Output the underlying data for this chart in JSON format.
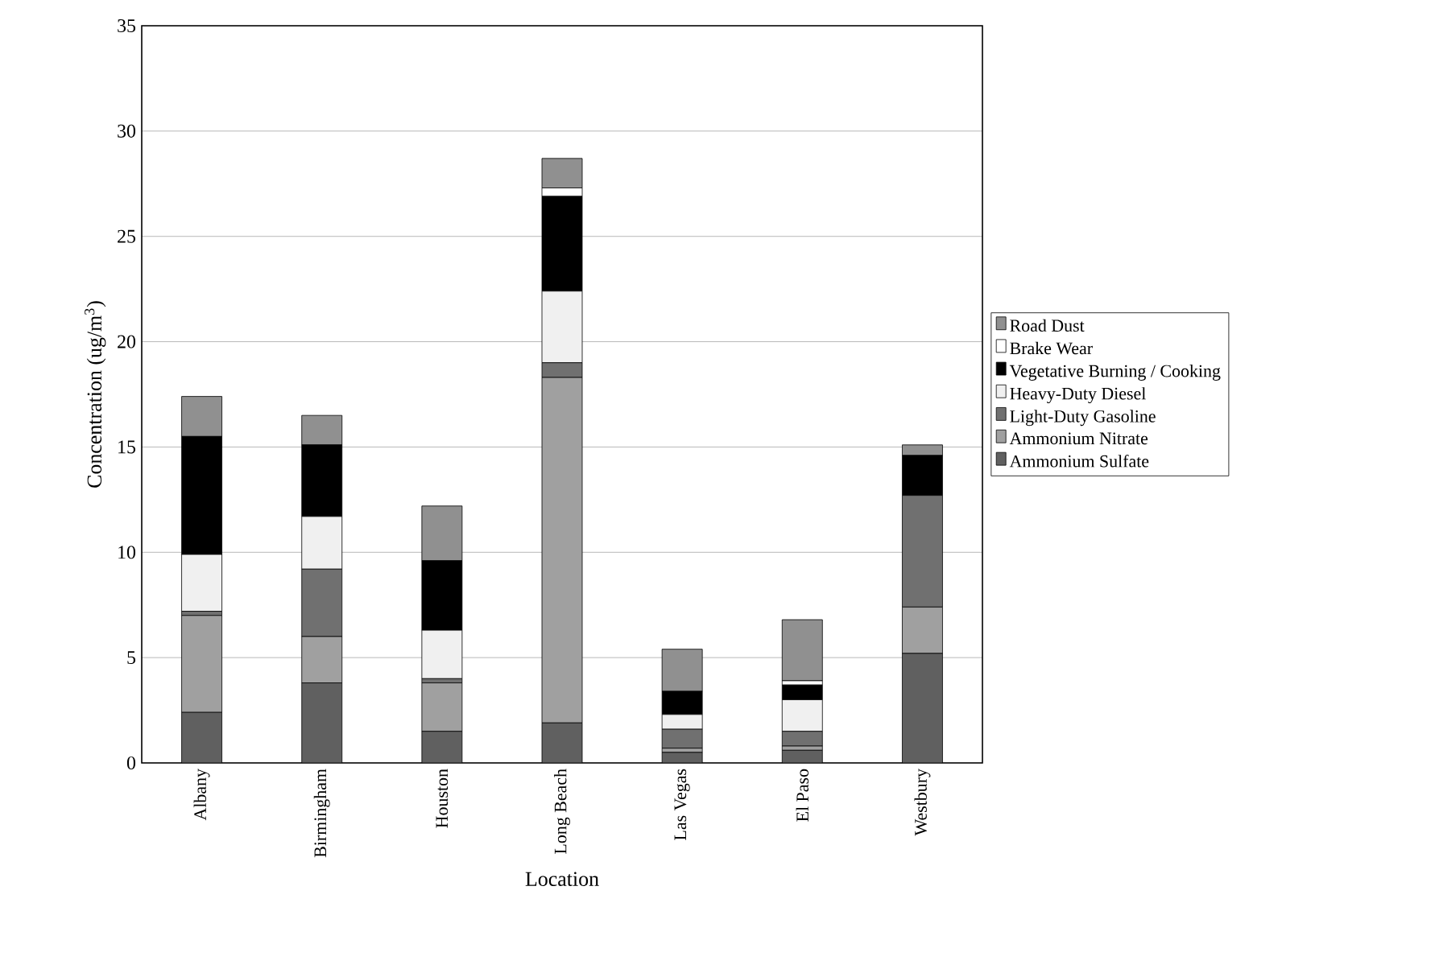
{
  "chart_data": {
    "type": "bar",
    "stacked": true,
    "xlabel": "Location",
    "ylabel": "Concentration (ug/m$^{3}$)",
    "categories": [
      "Albany",
      "Birmingham",
      "Houston",
      "Long Beach",
      "Las Vegas",
      "El Paso",
      "Westbury"
    ],
    "series": [
      {
        "name": "Ammonium Sulfate",
        "color": "#606060",
        "values": [
          2.4,
          3.8,
          1.5,
          1.9,
          0.5,
          0.6,
          5.2
        ]
      },
      {
        "name": "Ammonium Nitrate",
        "color": "#a0a0a0",
        "values": [
          4.6,
          2.2,
          2.3,
          16.4,
          0.2,
          0.2,
          2.2
        ]
      },
      {
        "name": "Light-Duty Gasoline",
        "color": "#707070",
        "values": [
          0.2,
          3.2,
          0.2,
          0.7,
          0.9,
          0.7,
          5.3
        ]
      },
      {
        "name": "Heavy-Duty Diesel",
        "color": "#f0f0f0",
        "values": [
          2.7,
          2.5,
          2.3,
          3.4,
          0.7,
          1.5,
          0
        ]
      },
      {
        "name": "Vegetative Burning / Cooking",
        "color": "#000000",
        "values": [
          5.6,
          3.4,
          3.3,
          4.5,
          1.1,
          0.7,
          1.9
        ]
      },
      {
        "name": "Brake Wear",
        "color": "#ffffff",
        "values": [
          0,
          0,
          0,
          0.4,
          0,
          0.2,
          0
        ]
      },
      {
        "name": "Road Dust",
        "color": "#909090",
        "values": [
          1.9,
          1.4,
          2.6,
          1.4,
          2.0,
          2.9,
          0.5
        ]
      }
    ],
    "ylim": [
      0,
      35
    ],
    "yticks": [
      0,
      5,
      10,
      15,
      20,
      25,
      30,
      35
    ],
    "grid": "y",
    "legend": "right"
  }
}
